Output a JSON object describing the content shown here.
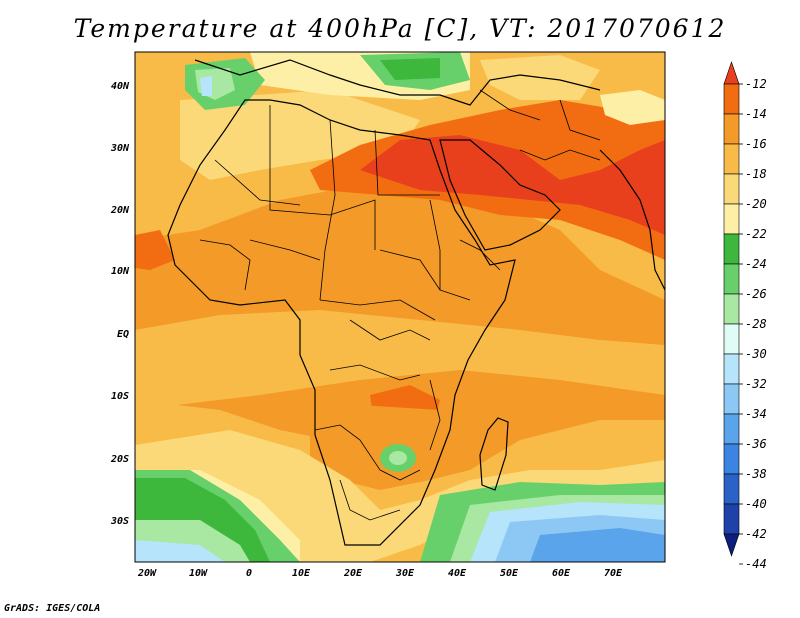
{
  "title": "Temperature at 400hPa [C], VT: 2017070612",
  "footer": "GrADS: IGES/COLA",
  "axes": {
    "lon_ticks": [
      "20W",
      "10W",
      "0",
      "10E",
      "20E",
      "30E",
      "40E",
      "50E",
      "60E",
      "70E"
    ],
    "lat_ticks": [
      "40N",
      "30N",
      "20N",
      "10N",
      "EQ",
      "10S",
      "20S",
      "30S"
    ]
  },
  "colorbar": {
    "labels": [
      "-12",
      "-14",
      "-16",
      "-18",
      "-20",
      "-22",
      "-24",
      "-26",
      "-28",
      "-30",
      "-32",
      "-34",
      "-36",
      "-38",
      "-40",
      "-42",
      "-44"
    ],
    "colors": [
      "#e8401c",
      "#f26d12",
      "#f49a28",
      "#f8bb48",
      "#fbd978",
      "#fdf0a6",
      "#3db83d",
      "#68d06a",
      "#a8e8a2",
      "#e0fcf6",
      "#b6e4fb",
      "#8dc8f4",
      "#5aa4ec",
      "#3c84e4",
      "#2a62c8",
      "#1e42aa",
      "#0c1f7c"
    ]
  },
  "palette": {
    "ocean": "#f8bb48",
    "warm_continent": "#f49a28",
    "hot_core": "#e8401c",
    "hot_band": "#f26d12",
    "cool_sahara": "#fbd978",
    "cold_green": "#68d06a",
    "cold_blue": "#8dc8f4"
  }
}
